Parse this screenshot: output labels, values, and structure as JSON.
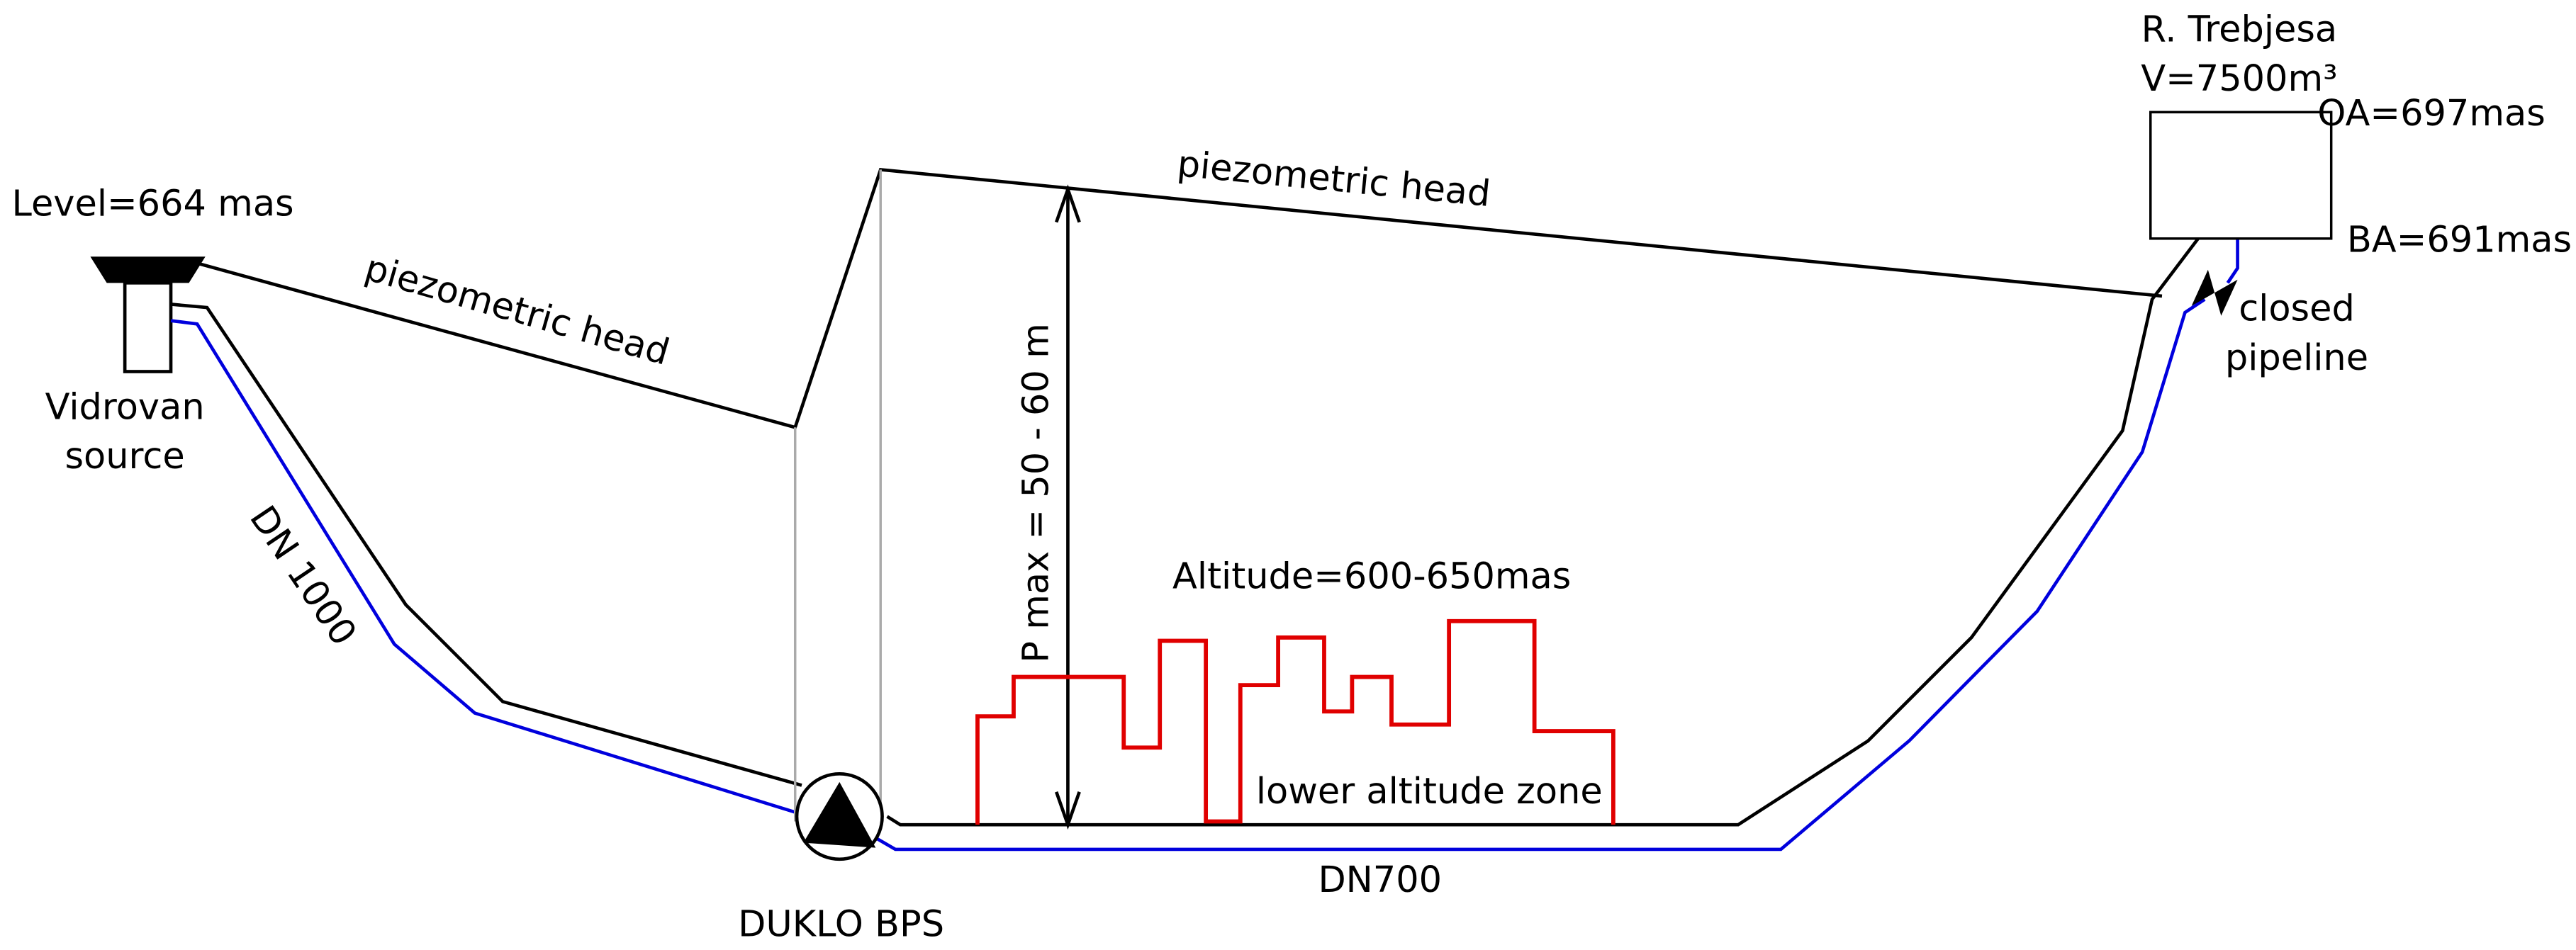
{
  "labels": {
    "source_level": "Level=664 mas",
    "source_name_1": "Vidrovan",
    "source_name_2": "source",
    "piezo_left": "piezometric head",
    "pipe_left": "DN 1000",
    "piezo_right": "piezometric head",
    "pressure": "P max = 50 - 60 m",
    "altitude": "Altitude=600-650mas",
    "zone": "lower altitude zone",
    "pipe_right": "DN700",
    "pump": "DUKLO BPS",
    "reservoir_1": "R. Trebjesa",
    "reservoir_2": "V=7500m³",
    "oa": "OA=697mas",
    "ba": "BA=691mas",
    "valve_1": "closed",
    "valve_2": "pipeline"
  }
}
